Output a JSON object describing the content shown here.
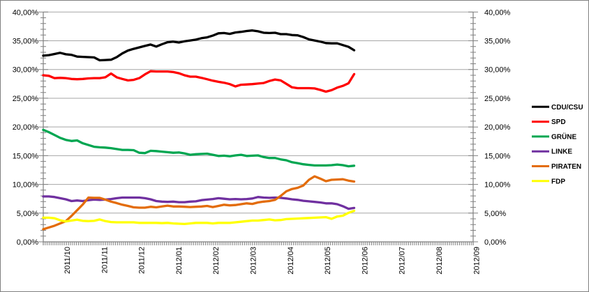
{
  "window": {
    "background": "#FFFFFF",
    "border_color": "#808080"
  },
  "colors": {
    "gridline": "#A6A6A6",
    "axis": "#808080",
    "tick": "#808080",
    "label_text": "#000000"
  },
  "chart_data": {
    "type": "line",
    "title": "",
    "description": "German party polling trend lines from 2011/10 to 2012/09, values in percent",
    "grid": "horizontal-major",
    "legend_position": "right",
    "y_axis": {
      "min": 0,
      "max": 40,
      "major_step": 5,
      "minor_step": 1,
      "mirrored_right": true,
      "tick_labels": [
        "0,00%",
        "5,00%",
        "10,00%",
        "15,00%",
        "20,00%",
        "25,00%",
        "30,00%",
        "35,00%",
        "40,00%"
      ]
    },
    "x_axis": {
      "tick_labels": [
        "2011/10",
        "2011/11",
        "2011/12",
        "2012/01",
        "2012/02",
        "2012/03",
        "2012/04",
        "2012/05",
        "2012/06",
        "2012/07",
        "2012/08",
        "2012/09"
      ],
      "label_rotation_deg": -90,
      "range_in_month_units": [
        -0.64,
        10.92
      ],
      "unit": "month index relative to 2011/10"
    },
    "series_x": {
      "start": -0.64,
      "step": 0.152,
      "unit": "months relative to 2011/10 tick",
      "points_per_series": 56
    },
    "series": [
      {
        "name": "CDU/CSU",
        "color": "#000000",
        "values": [
          32.4,
          32.5,
          32.7,
          32.9,
          32.65,
          32.55,
          32.25,
          32.2,
          32.15,
          32.1,
          31.6,
          31.65,
          31.7,
          32.15,
          32.8,
          33.3,
          33.6,
          33.85,
          34.1,
          34.35,
          34.0,
          34.4,
          34.75,
          34.85,
          34.7,
          34.9,
          35.05,
          35.2,
          35.45,
          35.6,
          35.9,
          36.3,
          36.35,
          36.2,
          36.45,
          36.55,
          36.7,
          36.8,
          36.65,
          36.4,
          36.35,
          36.4,
          36.15,
          36.15,
          36.0,
          35.95,
          35.65,
          35.25,
          35.05,
          34.85,
          34.6,
          34.55,
          34.55,
          34.25,
          33.95,
          33.35
        ]
      },
      {
        "name": "SPD",
        "color": "#FF0000",
        "values": [
          29.0,
          28.9,
          28.5,
          28.55,
          28.5,
          28.35,
          28.3,
          28.35,
          28.45,
          28.5,
          28.5,
          28.65,
          29.3,
          28.65,
          28.35,
          28.1,
          28.2,
          28.5,
          29.15,
          29.7,
          29.65,
          29.65,
          29.65,
          29.55,
          29.35,
          29.0,
          28.75,
          28.75,
          28.55,
          28.3,
          28.05,
          27.85,
          27.7,
          27.45,
          27.05,
          27.35,
          27.4,
          27.45,
          27.55,
          27.65,
          28.0,
          28.25,
          28.1,
          27.5,
          26.9,
          26.75,
          26.75,
          26.75,
          26.7,
          26.45,
          26.15,
          26.4,
          26.85,
          27.15,
          27.6,
          29.2
        ]
      },
      {
        "name": "GRÜNE",
        "color": "#00A651",
        "values": [
          19.5,
          19.1,
          18.6,
          18.1,
          17.75,
          17.55,
          17.65,
          17.15,
          16.85,
          16.55,
          16.45,
          16.4,
          16.3,
          16.15,
          16.0,
          16.0,
          15.95,
          15.5,
          15.45,
          15.85,
          15.8,
          15.7,
          15.6,
          15.5,
          15.55,
          15.4,
          15.15,
          15.25,
          15.3,
          15.35,
          15.15,
          14.95,
          15.0,
          14.9,
          15.05,
          15.15,
          14.95,
          15.0,
          15.05,
          14.75,
          14.6,
          14.6,
          14.35,
          14.2,
          13.85,
          13.7,
          13.5,
          13.4,
          13.3,
          13.3,
          13.3,
          13.35,
          13.45,
          13.35,
          13.15,
          13.25
        ]
      },
      {
        "name": "LINKE",
        "color": "#7030A0",
        "values": [
          7.9,
          7.9,
          7.8,
          7.6,
          7.4,
          7.1,
          7.2,
          7.1,
          7.25,
          7.35,
          7.3,
          7.35,
          7.45,
          7.6,
          7.7,
          7.7,
          7.7,
          7.7,
          7.6,
          7.4,
          7.1,
          7.0,
          6.95,
          7.0,
          6.9,
          6.9,
          7.0,
          7.05,
          7.25,
          7.35,
          7.45,
          7.6,
          7.5,
          7.4,
          7.45,
          7.4,
          7.45,
          7.55,
          7.8,
          7.7,
          7.65,
          7.7,
          7.65,
          7.55,
          7.4,
          7.3,
          7.15,
          7.05,
          6.95,
          6.85,
          6.7,
          6.7,
          6.55,
          6.2,
          5.75,
          5.9
        ]
      },
      {
        "name": "PIRATEN",
        "color": "#E36C0A",
        "values": [
          2.2,
          2.5,
          2.8,
          3.2,
          3.6,
          4.5,
          5.5,
          6.5,
          7.7,
          7.65,
          7.65,
          7.35,
          7.0,
          6.75,
          6.45,
          6.25,
          6.0,
          5.95,
          5.95,
          6.1,
          6.0,
          6.15,
          6.3,
          6.15,
          6.15,
          6.1,
          6.05,
          6.1,
          6.15,
          6.25,
          6.05,
          6.25,
          6.45,
          6.35,
          6.4,
          6.55,
          6.7,
          6.6,
          6.85,
          7.0,
          7.1,
          7.3,
          8.0,
          8.8,
          9.2,
          9.4,
          9.8,
          10.8,
          11.4,
          11.0,
          10.55,
          10.8,
          10.85,
          10.9,
          10.65,
          10.5
        ]
      },
      {
        "name": "FDP",
        "color": "#FFFF00",
        "values": [
          4.2,
          4.2,
          4.1,
          3.75,
          3.55,
          3.7,
          3.85,
          3.65,
          3.6,
          3.65,
          3.9,
          3.6,
          3.45,
          3.4,
          3.4,
          3.4,
          3.4,
          3.3,
          3.3,
          3.3,
          3.3,
          3.25,
          3.3,
          3.2,
          3.15,
          3.1,
          3.2,
          3.3,
          3.3,
          3.3,
          3.2,
          3.3,
          3.3,
          3.3,
          3.4,
          3.5,
          3.6,
          3.7,
          3.7,
          3.8,
          3.9,
          3.75,
          3.8,
          3.95,
          4.0,
          4.05,
          4.1,
          4.15,
          4.2,
          4.25,
          4.3,
          4.0,
          4.4,
          4.55,
          5.05,
          5.4
        ]
      }
    ]
  }
}
